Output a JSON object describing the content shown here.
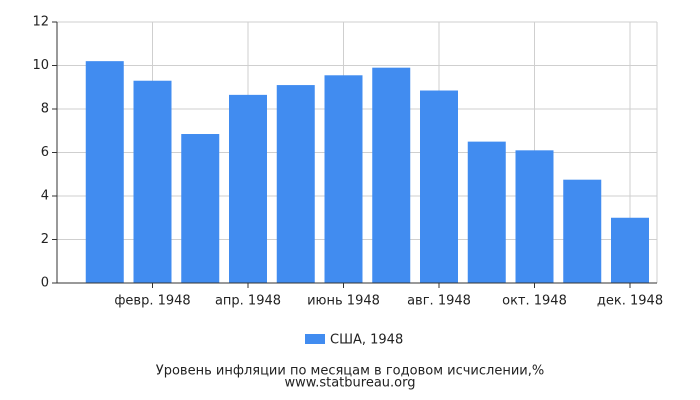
{
  "chart_data": {
    "type": "bar",
    "categories": [
      null,
      "февр. 1948",
      null,
      "апр. 1948",
      null,
      "июнь 1948",
      null,
      "авг. 1948",
      null,
      "окт. 1948",
      null,
      "дек. 1948"
    ],
    "series": [
      {
        "name": "США, 1948",
        "color": "#418cf0",
        "values": [
          10.2,
          9.3,
          6.85,
          8.65,
          9.1,
          9.55,
          9.9,
          8.85,
          6.5,
          6.1,
          4.75,
          3.0
        ]
      }
    ],
    "ylim": [
      0,
      12
    ],
    "yticks": [
      0,
      2,
      4,
      6,
      8,
      10,
      12
    ],
    "grid": true,
    "caption": [
      "Уровень инфляции по месяцам в годовом исчислении,%",
      "www.statbureau.org"
    ]
  }
}
